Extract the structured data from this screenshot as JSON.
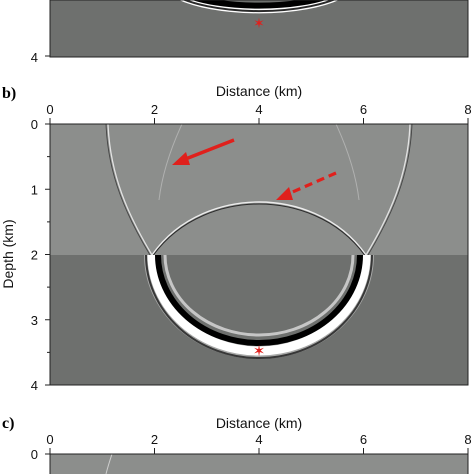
{
  "panels": [
    {
      "id": "a",
      "label": "",
      "visible_y_ticks": [
        "4"
      ]
    },
    {
      "id": "b",
      "label": "b)",
      "x_axis_title": "Distance (km)",
      "y_axis_title": "Depth (km)",
      "x_ticks": [
        "0",
        "2",
        "4",
        "6",
        "8"
      ],
      "y_ticks": [
        "0",
        "1",
        "2",
        "3",
        "4"
      ]
    },
    {
      "id": "c",
      "label": "c)",
      "x_axis_title": "Distance (km)",
      "x_ticks": [
        "0",
        "2",
        "4",
        "6",
        "8"
      ],
      "visible_y_ticks": [
        "0"
      ]
    }
  ],
  "model": {
    "x_range_km": [
      0,
      8
    ],
    "depth_range_km": [
      0,
      4
    ],
    "interface_depth_km": 2,
    "source": {
      "x_km": 4,
      "depth_km": 3.45
    },
    "colors": {
      "upper_layer": "#8c8e8c",
      "lower_layer": "#6e706e",
      "annotation": "#e0201c"
    }
  },
  "annotations": [
    {
      "style": "solid-arrow",
      "from_km": [
        3.5,
        0.25
      ],
      "to_km": [
        2.4,
        0.65
      ]
    },
    {
      "style": "dashed-arrow",
      "from_km": [
        5.5,
        0.8
      ],
      "to_km": [
        4.4,
        1.2
      ]
    }
  ],
  "colors": {
    "upper_layer": "#8c8e8c",
    "lower_layer": "#6e706e",
    "red": "#e0201c"
  }
}
